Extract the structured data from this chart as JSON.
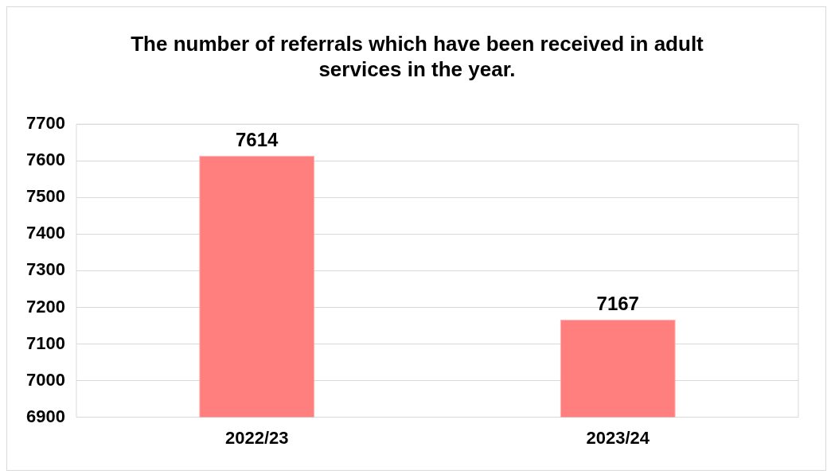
{
  "chart_data": {
    "type": "bar",
    "title": "The number of referrals which have been received in adult services in the year.",
    "categories": [
      "2022/23",
      "2023/24"
    ],
    "values": [
      7614,
      7167
    ],
    "color": "#ff7f7f",
    "ylim": [
      6900,
      7700
    ],
    "yticks": [
      6900,
      7000,
      7100,
      7200,
      7300,
      7400,
      7500,
      7600,
      7700
    ],
    "grid": "y",
    "legend": false,
    "data_labels": true
  }
}
